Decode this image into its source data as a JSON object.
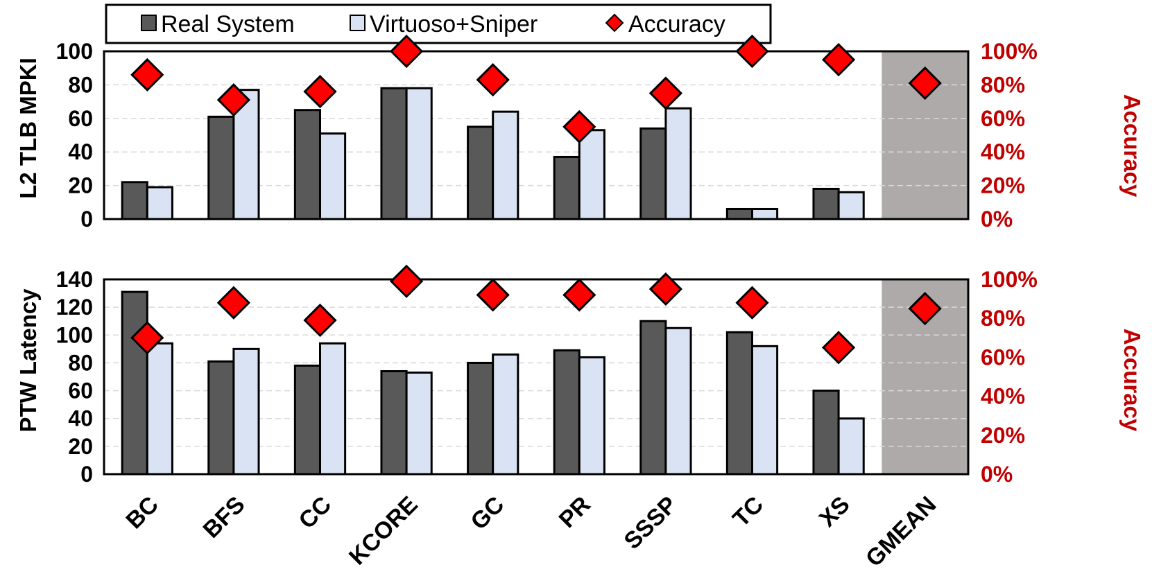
{
  "chart_data": [
    {
      "type": "bar",
      "panel": "top",
      "categories": [
        "BC",
        "BFS",
        "CC",
        "KCORE",
        "GC",
        "PR",
        "SSSP",
        "TC",
        "XS",
        "GMEAN"
      ],
      "series": [
        {
          "name": "Real System",
          "values": [
            22,
            61,
            65,
            78,
            55,
            37,
            54,
            6,
            18,
            null
          ]
        },
        {
          "name": "Virtuoso+Sniper",
          "values": [
            19,
            77,
            51,
            78,
            64,
            53,
            66,
            6,
            16,
            null
          ]
        }
      ],
      "secondary_series": {
        "name": "Accuracy",
        "type": "scatter",
        "marker": "diamond",
        "values": [
          86,
          71,
          76,
          100,
          83,
          55,
          75,
          100,
          95,
          81
        ]
      },
      "ylabel": "L2 TLB MPKI",
      "ylim": [
        0,
        100
      ],
      "yticks": [
        "0",
        "20",
        "40",
        "60",
        "80",
        "100"
      ],
      "y2label": "Accuracy",
      "y2lim": [
        0,
        100
      ],
      "y2ticks": [
        "0%",
        "20%",
        "40%",
        "60%",
        "80%",
        "100%"
      ],
      "shaded_category": "GMEAN"
    },
    {
      "type": "bar",
      "panel": "bottom",
      "categories": [
        "BC",
        "BFS",
        "CC",
        "KCORE",
        "GC",
        "PR",
        "SSSP",
        "TC",
        "XS",
        "GMEAN"
      ],
      "series": [
        {
          "name": "Real System",
          "values": [
            131,
            81,
            78,
            74,
            80,
            89,
            110,
            102,
            60,
            null
          ]
        },
        {
          "name": "Virtuoso+Sniper",
          "values": [
            94,
            90,
            94,
            73,
            86,
            84,
            105,
            92,
            40,
            null
          ]
        }
      ],
      "secondary_series": {
        "name": "Accuracy",
        "type": "scatter",
        "marker": "diamond",
        "values": [
          70,
          88,
          79,
          99,
          92,
          92,
          95,
          88,
          65,
          85
        ]
      },
      "ylabel": "PTW Latency",
      "ylim": [
        0,
        140
      ],
      "yticks": [
        "0",
        "20",
        "40",
        "60",
        "80",
        "100",
        "120",
        "140"
      ],
      "y2label": "Accuracy",
      "y2lim": [
        0,
        100
      ],
      "y2ticks": [
        "0%",
        "20%",
        "40%",
        "60%",
        "80%",
        "100%"
      ],
      "shaded_category": "GMEAN"
    }
  ],
  "legend": {
    "position": "top",
    "items": [
      {
        "label": "Real System",
        "marker": "square-dark"
      },
      {
        "label": "Virtuoso+Sniper",
        "marker": "square-light"
      },
      {
        "label": "Accuracy",
        "marker": "diamond-red"
      }
    ]
  },
  "colors": {
    "real_system": "#595959",
    "virtuoso_sniper": "#dae3f3",
    "accuracy": "#ff0000",
    "accuracy_axis": "#c00000",
    "shade": "#aeaaaa"
  }
}
